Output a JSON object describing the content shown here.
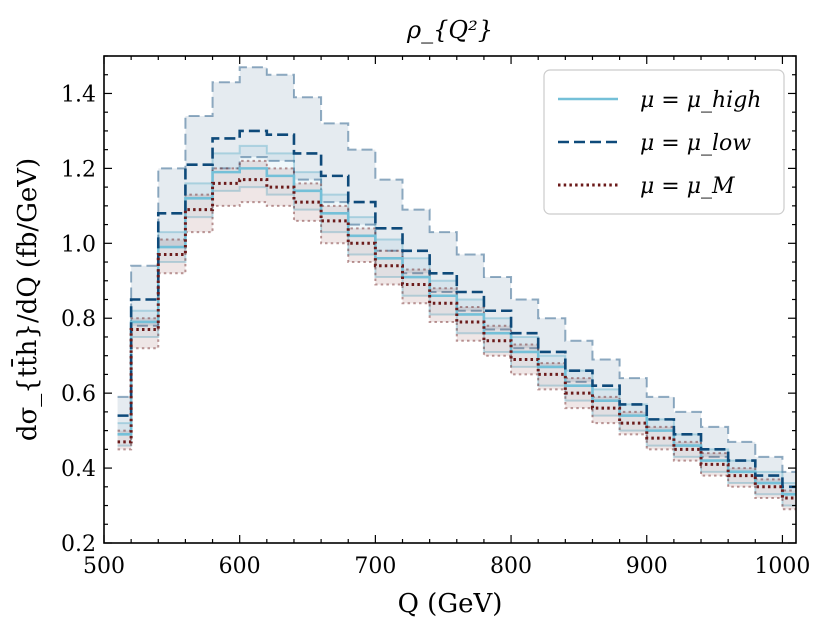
{
  "chart_data": {
    "type": "line",
    "title": "ρ_{Q²}",
    "xlabel": "Q (GeV)",
    "ylabel": "dσ_{tt̄h}/dQ (fb/GeV)",
    "xlim": [
      500,
      1010
    ],
    "ylim": [
      0.2,
      1.5
    ],
    "xticks": [
      500,
      600,
      700,
      800,
      900,
      1000
    ],
    "yticks": [
      0.2,
      0.4,
      0.6,
      0.8,
      1.0,
      1.2,
      1.4
    ],
    "grid": false,
    "legend_position": "top-right",
    "bin_edges": [
      510,
      520,
      540,
      560,
      580,
      600,
      620,
      640,
      660,
      680,
      700,
      720,
      740,
      760,
      780,
      800,
      820,
      840,
      860,
      880,
      900,
      920,
      940,
      960,
      980,
      1000,
      1010
    ],
    "series": [
      {
        "name": "μ = μ_high",
        "color": "#74c0d8",
        "style": "solid",
        "values": [
          0.49,
          0.79,
          0.99,
          1.12,
          1.19,
          1.2,
          1.18,
          1.14,
          1.08,
          1.02,
          0.96,
          0.91,
          0.86,
          0.81,
          0.76,
          0.71,
          0.67,
          0.62,
          0.58,
          0.54,
          0.5,
          0.46,
          0.42,
          0.39,
          0.36,
          0.33
        ],
        "band": [
          [
            0.46,
            0.52
          ],
          [
            0.75,
            0.82
          ],
          [
            0.95,
            1.03
          ],
          [
            1.07,
            1.16
          ],
          [
            1.14,
            1.24
          ],
          [
            1.15,
            1.26
          ],
          [
            1.13,
            1.24
          ],
          [
            1.09,
            1.19
          ],
          [
            1.03,
            1.13
          ],
          [
            0.97,
            1.07
          ],
          [
            0.91,
            1.01
          ],
          [
            0.86,
            0.96
          ],
          [
            0.81,
            0.9
          ],
          [
            0.76,
            0.85
          ],
          [
            0.71,
            0.8
          ],
          [
            0.67,
            0.75
          ],
          [
            0.62,
            0.7
          ],
          [
            0.58,
            0.66
          ],
          [
            0.54,
            0.61
          ],
          [
            0.5,
            0.57
          ],
          [
            0.46,
            0.53
          ],
          [
            0.43,
            0.49
          ],
          [
            0.39,
            0.45
          ],
          [
            0.36,
            0.42
          ],
          [
            0.33,
            0.39
          ],
          [
            0.3,
            0.36
          ]
        ]
      },
      {
        "name": "μ = μ_low",
        "color": "#0e4a7a",
        "style": "dashed",
        "values": [
          0.54,
          0.85,
          1.08,
          1.21,
          1.28,
          1.3,
          1.29,
          1.24,
          1.18,
          1.11,
          1.04,
          0.98,
          0.92,
          0.87,
          0.82,
          0.76,
          0.71,
          0.66,
          0.62,
          0.57,
          0.53,
          0.49,
          0.45,
          0.42,
          0.38,
          0.35
        ],
        "band": [
          [
            0.49,
            0.59
          ],
          [
            0.78,
            0.94
          ],
          [
            0.99,
            1.2
          ],
          [
            1.12,
            1.34
          ],
          [
            1.2,
            1.43
          ],
          [
            1.23,
            1.47
          ],
          [
            1.22,
            1.45
          ],
          [
            1.17,
            1.39
          ],
          [
            1.11,
            1.32
          ],
          [
            1.05,
            1.25
          ],
          [
            0.98,
            1.17
          ],
          [
            0.92,
            1.09
          ],
          [
            0.87,
            1.03
          ],
          [
            0.82,
            0.97
          ],
          [
            0.77,
            0.91
          ],
          [
            0.72,
            0.85
          ],
          [
            0.67,
            0.8
          ],
          [
            0.63,
            0.74
          ],
          [
            0.58,
            0.69
          ],
          [
            0.54,
            0.64
          ],
          [
            0.5,
            0.59
          ],
          [
            0.46,
            0.55
          ],
          [
            0.43,
            0.51
          ],
          [
            0.39,
            0.47
          ],
          [
            0.36,
            0.43
          ],
          [
            0.33,
            0.39
          ]
        ]
      },
      {
        "name": "μ = μ_M",
        "color": "#6b1a1a",
        "style": "dotted",
        "values": [
          0.47,
          0.77,
          0.97,
          1.09,
          1.16,
          1.17,
          1.15,
          1.11,
          1.06,
          1.0,
          0.94,
          0.89,
          0.84,
          0.79,
          0.74,
          0.69,
          0.65,
          0.6,
          0.56,
          0.52,
          0.48,
          0.45,
          0.41,
          0.38,
          0.35,
          0.32
        ],
        "band": [
          [
            0.45,
            0.5
          ],
          [
            0.72,
            0.8
          ],
          [
            0.92,
            1.01
          ],
          [
            1.03,
            1.13
          ],
          [
            1.1,
            1.2
          ],
          [
            1.11,
            1.22
          ],
          [
            1.1,
            1.2
          ],
          [
            1.06,
            1.16
          ],
          [
            1.0,
            1.1
          ],
          [
            0.95,
            1.04
          ],
          [
            0.89,
            0.98
          ],
          [
            0.84,
            0.93
          ],
          [
            0.79,
            0.88
          ],
          [
            0.74,
            0.83
          ],
          [
            0.7,
            0.78
          ],
          [
            0.65,
            0.73
          ],
          [
            0.61,
            0.68
          ],
          [
            0.56,
            0.64
          ],
          [
            0.52,
            0.59
          ],
          [
            0.49,
            0.55
          ],
          [
            0.45,
            0.51
          ],
          [
            0.42,
            0.47
          ],
          [
            0.38,
            0.44
          ],
          [
            0.35,
            0.4
          ],
          [
            0.32,
            0.37
          ],
          [
            0.29,
            0.34
          ]
        ]
      }
    ]
  }
}
